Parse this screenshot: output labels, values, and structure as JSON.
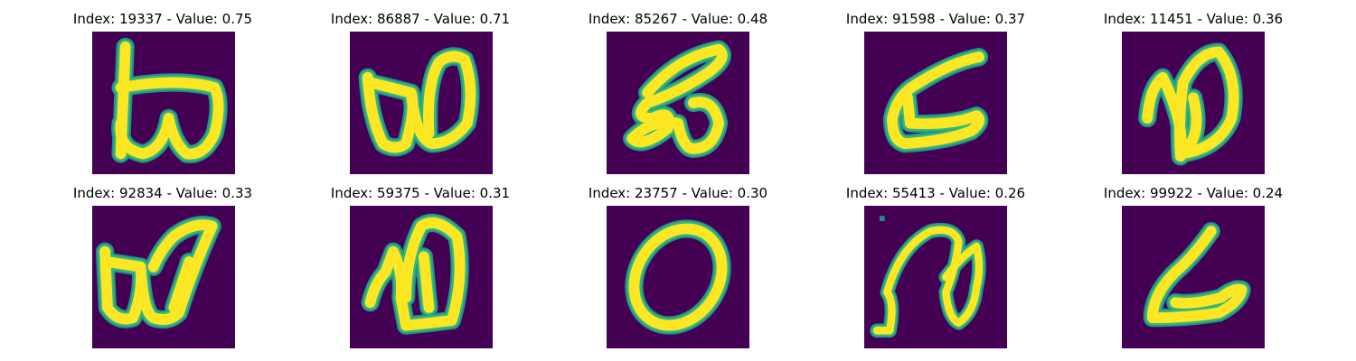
{
  "palette": {
    "background": "#440154",
    "stroke_core": "#fde725",
    "stroke_edge": "#35b779",
    "stroke_mid": "#21918c"
  },
  "panels": [
    {
      "index": "19337",
      "value": "0.75",
      "title": "Index: 19337 - Value: 0.75",
      "glyph": "glyph-b-omega"
    },
    {
      "index": "86887",
      "value": "0.71",
      "title": "Index: 86887 - Value: 0.71",
      "glyph": "glyph-omega"
    },
    {
      "index": "85267",
      "value": "0.48",
      "title": "Index: 85267 - Value: 0.48",
      "glyph": "glyph-script-loop"
    },
    {
      "index": "91598",
      "value": "0.37",
      "title": "Index: 91598 - Value: 0.37",
      "glyph": "glyph-bracket-c"
    },
    {
      "index": "11451",
      "value": "0.36",
      "title": "Index: 11451 - Value: 0.36",
      "glyph": "glyph-script-d"
    },
    {
      "index": "92834",
      "value": "0.33",
      "title": "Index: 92834 - Value: 0.33",
      "glyph": "glyph-omega"
    },
    {
      "index": "59375",
      "value": "0.31",
      "title": "Index: 59375 - Value: 0.31",
      "glyph": "glyph-script-d"
    },
    {
      "index": "23757",
      "value": "0.30",
      "title": "Index: 23757 - Value: 0.30",
      "glyph": "glyph-zero"
    },
    {
      "index": "55413",
      "value": "0.26",
      "title": "Index: 55413 - Value: 0.26",
      "glyph": "glyph-script-n"
    },
    {
      "index": "99922",
      "value": "0.24",
      "title": "Index: 99922 - Value: 0.24",
      "glyph": "glyph-bracket-l"
    }
  ]
}
